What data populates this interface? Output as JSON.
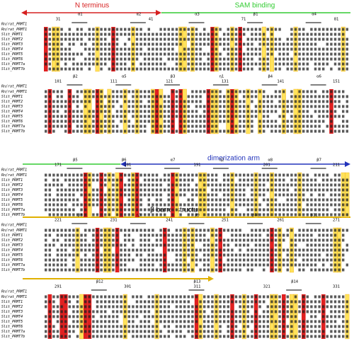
{
  "annotations": {
    "n_terminus": "N terminus",
    "sam_binding": "SAM binding",
    "dimerization_arm": "dimerization arm",
    "beta_barrel": "β barrel structure"
  },
  "structure_label": "Rn/rat_PRMT1",
  "sequence_names": [
    "Rn/rat_PRMT1",
    "Slit_PRMT1",
    "Slit_PRMT2",
    "Slit_PRMT3",
    "Slit_PRMT4",
    "Slit_PRMT5",
    "Slit_PRMT6",
    "Slit_PRMT7a",
    "Slit_PRMT7b"
  ],
  "blocks": [
    {
      "positions": [
        "31",
        "41",
        "71",
        "81"
      ],
      "elements": [
        "α1",
        "α2",
        "α3",
        "β1",
        "α4"
      ]
    },
    {
      "positions": [
        "101",
        "111",
        "121",
        "131",
        "141",
        "151"
      ],
      "elements": [
        "β2",
        "α5",
        "β3",
        "η1",
        "β4",
        "α6"
      ]
    },
    {
      "positions": [
        "171",
        "181",
        "191",
        "201",
        "211"
      ],
      "elements": [
        "β5",
        "β6",
        "α7",
        "η2",
        "α8",
        "β7"
      ]
    },
    {
      "positions": [
        "221",
        "231",
        "241",
        "251",
        "261",
        "271"
      ],
      "elements": [
        "β8",
        "η3",
        "β9",
        "β10",
        "β11"
      ]
    },
    {
      "positions": [
        "291",
        "301",
        "311",
        "321",
        "331"
      ],
      "elements": [
        "β12",
        "β13",
        "β14"
      ]
    }
  ]
}
